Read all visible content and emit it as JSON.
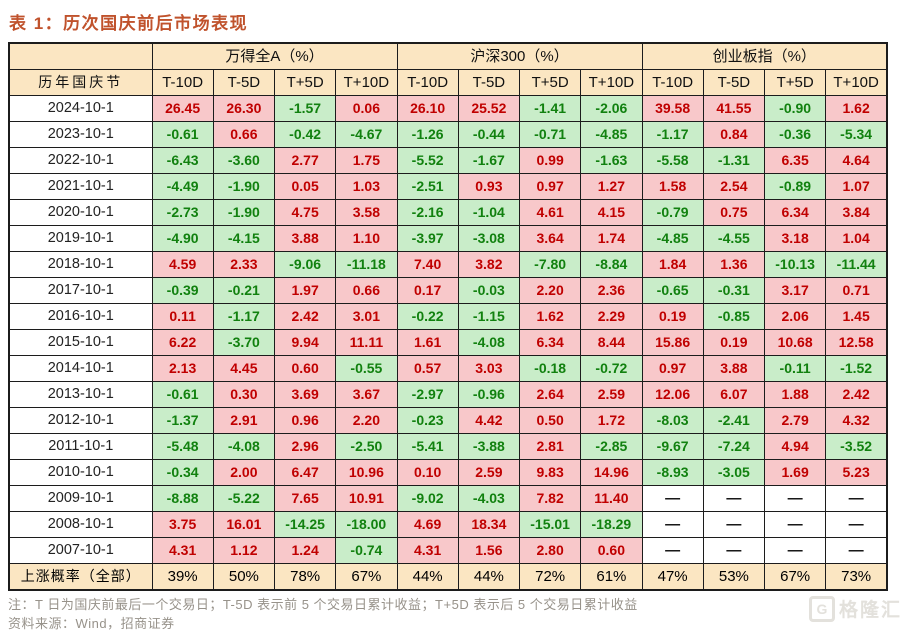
{
  "title": "表 1：历次国庆前后市场表现",
  "table": {
    "row_header": "历年国庆节",
    "groups": [
      {
        "label": "万得全A（%）"
      },
      {
        "label": "沪深300（%）"
      },
      {
        "label": "创业板指（%）"
      }
    ],
    "sub_headers": [
      "T-10D",
      "T-5D",
      "T+5D",
      "T+10D"
    ],
    "rows": [
      {
        "date": "2024-10-1",
        "values": [
          "26.45",
          "26.30",
          "-1.57",
          "0.06",
          "26.10",
          "25.52",
          "-1.41",
          "-2.06",
          "39.58",
          "41.55",
          "-0.90",
          "1.62"
        ]
      },
      {
        "date": "2023-10-1",
        "values": [
          "-0.61",
          "0.66",
          "-0.42",
          "-4.67",
          "-1.26",
          "-0.44",
          "-0.71",
          "-4.85",
          "-1.17",
          "0.84",
          "-0.36",
          "-5.34"
        ]
      },
      {
        "date": "2022-10-1",
        "values": [
          "-6.43",
          "-3.60",
          "2.77",
          "1.75",
          "-5.52",
          "-1.67",
          "0.99",
          "-1.63",
          "-5.58",
          "-1.31",
          "6.35",
          "4.64"
        ]
      },
      {
        "date": "2021-10-1",
        "values": [
          "-4.49",
          "-1.90",
          "0.05",
          "1.03",
          "-2.51",
          "0.93",
          "0.97",
          "1.27",
          "1.58",
          "2.54",
          "-0.89",
          "1.07"
        ]
      },
      {
        "date": "2020-10-1",
        "values": [
          "-2.73",
          "-1.90",
          "4.75",
          "3.58",
          "-2.16",
          "-1.04",
          "4.61",
          "4.15",
          "-0.79",
          "0.75",
          "6.34",
          "3.84"
        ]
      },
      {
        "date": "2019-10-1",
        "values": [
          "-4.90",
          "-4.15",
          "3.88",
          "1.10",
          "-3.97",
          "-3.08",
          "3.64",
          "1.74",
          "-4.85",
          "-4.55",
          "3.18",
          "1.04"
        ]
      },
      {
        "date": "2018-10-1",
        "values": [
          "4.59",
          "2.33",
          "-9.06",
          "-11.18",
          "7.40",
          "3.82",
          "-7.80",
          "-8.84",
          "1.84",
          "1.36",
          "-10.13",
          "-11.44"
        ]
      },
      {
        "date": "2017-10-1",
        "values": [
          "-0.39",
          "-0.21",
          "1.97",
          "0.66",
          "0.17",
          "-0.03",
          "2.20",
          "2.36",
          "-0.65",
          "-0.31",
          "3.17",
          "0.71"
        ]
      },
      {
        "date": "2016-10-1",
        "values": [
          "0.11",
          "-1.17",
          "2.42",
          "3.01",
          "-0.22",
          "-1.15",
          "1.62",
          "2.29",
          "0.19",
          "-0.85",
          "2.06",
          "1.45"
        ]
      },
      {
        "date": "2015-10-1",
        "values": [
          "6.22",
          "-3.70",
          "9.94",
          "11.11",
          "1.61",
          "-4.08",
          "6.34",
          "8.44",
          "15.86",
          "0.19",
          "10.68",
          "12.58"
        ]
      },
      {
        "date": "2014-10-1",
        "values": [
          "2.13",
          "4.45",
          "0.60",
          "-0.55",
          "0.57",
          "3.03",
          "-0.18",
          "-0.72",
          "0.97",
          "3.88",
          "-0.11",
          "-1.52"
        ]
      },
      {
        "date": "2013-10-1",
        "values": [
          "-0.61",
          "0.30",
          "3.69",
          "3.67",
          "-2.97",
          "-0.96",
          "2.64",
          "2.59",
          "12.06",
          "6.07",
          "1.88",
          "2.42"
        ]
      },
      {
        "date": "2012-10-1",
        "values": [
          "-1.37",
          "2.91",
          "0.96",
          "2.20",
          "-0.23",
          "4.42",
          "0.50",
          "1.72",
          "-8.03",
          "-2.41",
          "2.79",
          "4.32"
        ]
      },
      {
        "date": "2011-10-1",
        "values": [
          "-5.48",
          "-4.08",
          "2.96",
          "-2.50",
          "-5.41",
          "-3.88",
          "2.81",
          "-2.85",
          "-9.67",
          "-7.24",
          "4.94",
          "-3.52"
        ]
      },
      {
        "date": "2010-10-1",
        "values": [
          "-0.34",
          "2.00",
          "6.47",
          "10.96",
          "0.10",
          "2.59",
          "9.83",
          "14.96",
          "-8.93",
          "-3.05",
          "1.69",
          "5.23"
        ]
      },
      {
        "date": "2009-10-1",
        "values": [
          "-8.88",
          "-5.22",
          "7.65",
          "10.91",
          "-9.02",
          "-4.03",
          "7.82",
          "11.40",
          "—",
          "—",
          "—",
          "—"
        ]
      },
      {
        "date": "2008-10-1",
        "values": [
          "3.75",
          "16.01",
          "-14.25",
          "-18.00",
          "4.69",
          "18.34",
          "-15.01",
          "-18.29",
          "—",
          "—",
          "—",
          "—"
        ]
      },
      {
        "date": "2007-10-1",
        "values": [
          "4.31",
          "1.12",
          "1.24",
          "-0.74",
          "4.31",
          "1.56",
          "2.80",
          "0.60",
          "—",
          "—",
          "—",
          "—"
        ]
      }
    ],
    "summary": {
      "label": "上涨概率（全部）",
      "values": [
        "39%",
        "50%",
        "78%",
        "67%",
        "44%",
        "44%",
        "72%",
        "61%",
        "47%",
        "53%",
        "67%",
        "73%"
      ]
    }
  },
  "notes": {
    "note": "注：T 日为国庆前最后一个交易日；T-5D 表示前 5 个交易日累计收益；T+5D 表示后 5 个交易日累计收益",
    "source": "资料来源：Wind，招商证券"
  },
  "watermark": {
    "badge": "G",
    "text": "格隆汇"
  },
  "colors": {
    "title": "#C0522C",
    "header_bg": "#FBE6C2",
    "positive_bg": "#F8C8CA",
    "positive_text": "#C00000",
    "negative_bg": "#C9EDC9",
    "negative_text": "#11810F",
    "border": "#1C1C1C",
    "note_text": "#97928A",
    "watermark": "#E3E1DC"
  }
}
